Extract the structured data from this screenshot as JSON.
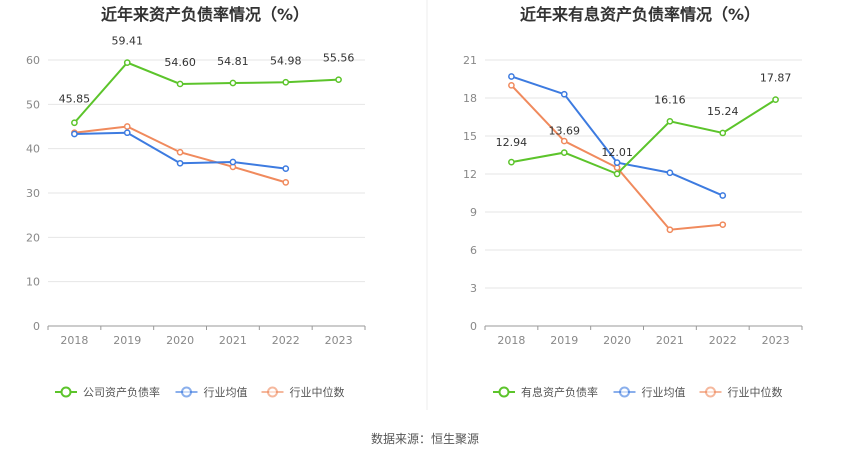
{
  "colors": {
    "company": "#5cc42b",
    "avg": "#3d7be0",
    "median": "#f08a5d"
  },
  "source": "数据来源：恒生聚源",
  "chart_data": [
    {
      "type": "line",
      "title": "近年来资产负债率情况（%）",
      "categories": [
        "2018",
        "2019",
        "2020",
        "2021",
        "2022",
        "2023"
      ],
      "ylim": [
        0,
        60
      ],
      "yticks": [
        0,
        10,
        20,
        30,
        40,
        50,
        60
      ],
      "grid": true,
      "legend_position": "bottom",
      "series": [
        {
          "name": "公司资产负债率",
          "color": "#5cc42b",
          "values": [
            45.85,
            59.41,
            54.6,
            54.81,
            54.98,
            55.56
          ],
          "labels": [
            "45.85",
            "59.41",
            "54.60",
            "54.81",
            "54.98",
            "55.56"
          ]
        },
        {
          "name": "行业均值",
          "color": "#3d7be0",
          "values": [
            43.3,
            43.6,
            36.7,
            37.0,
            35.5,
            null
          ]
        },
        {
          "name": "行业中位数",
          "color": "#f08a5d",
          "values": [
            43.6,
            45.0,
            39.2,
            35.9,
            32.4,
            null
          ]
        }
      ]
    },
    {
      "type": "line",
      "title": "近年来有息资产负债率情况（%）",
      "categories": [
        "2018",
        "2019",
        "2020",
        "2021",
        "2022",
        "2023"
      ],
      "ylim": [
        0,
        21
      ],
      "yticks": [
        0,
        3,
        6,
        9,
        12,
        15,
        18,
        21
      ],
      "grid": true,
      "legend_position": "bottom",
      "series": [
        {
          "name": "有息资产负债率",
          "color": "#5cc42b",
          "values": [
            12.94,
            13.69,
            12.01,
            16.16,
            15.24,
            17.87
          ],
          "labels": [
            "12.94",
            "13.69",
            "12.01",
            "16.16",
            "15.24",
            "17.87"
          ]
        },
        {
          "name": "行业均值",
          "color": "#3d7be0",
          "values": [
            19.7,
            18.3,
            12.9,
            12.1,
            10.3,
            null
          ]
        },
        {
          "name": "行业中位数",
          "color": "#f08a5d",
          "values": [
            19.0,
            14.6,
            12.5,
            7.6,
            8.0,
            null
          ]
        }
      ]
    }
  ]
}
